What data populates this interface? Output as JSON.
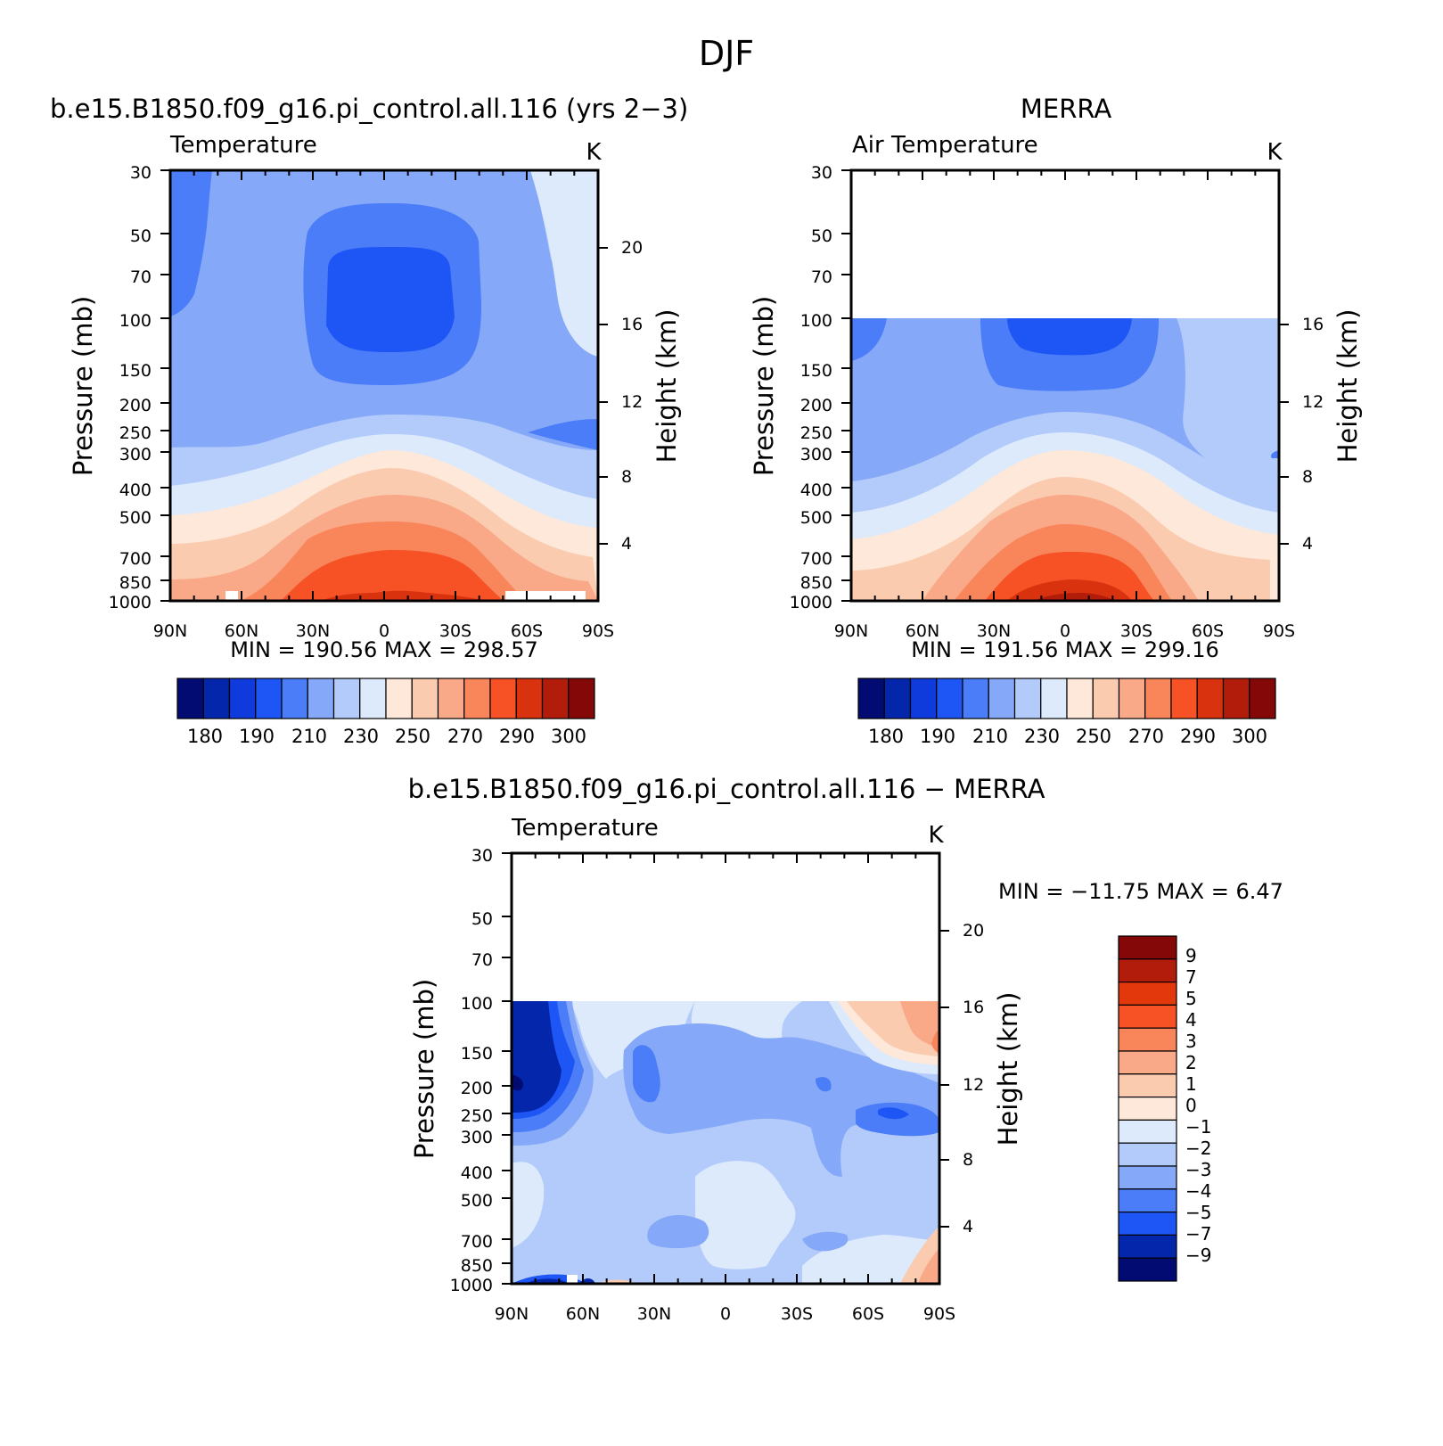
{
  "figure_title": "DJF",
  "chart_data": [
    {
      "type": "heatmap",
      "title": "b.e15.B1850.f09_g16.pi_control.all.116 (yrs 2−3)",
      "variable": "Temperature",
      "units": "K",
      "ylabel": "Pressure (mb)",
      "ylabel_right": "Height (km)",
      "x_ticks": [
        "90N",
        "60N",
        "30N",
        "0",
        "30S",
        "60S",
        "90S"
      ],
      "y_ticks": [
        "30",
        "50",
        "70",
        "100",
        "150",
        "200",
        "250",
        "300",
        "400",
        "500",
        "700",
        "850",
        "1000"
      ],
      "height_ticks": [
        "20",
        "16",
        "12",
        "8",
        "4"
      ],
      "stats": "MIN = 190.56 MAX = 298.57",
      "colorbar_labels": [
        "180",
        "190",
        "210",
        "230",
        "250",
        "270",
        "290",
        "300"
      ],
      "data_top_pressure": 30,
      "field": "equatorial cold tropopause near 100 mb (~195 K), surface maximum near the equator (~298 K)"
    },
    {
      "type": "heatmap",
      "title": "MERRA",
      "variable": "Air Temperature",
      "units": "K",
      "ylabel": "Pressure (mb)",
      "ylabel_right": "Height (km)",
      "x_ticks": [
        "90N",
        "60N",
        "30N",
        "0",
        "30S",
        "60S",
        "90S"
      ],
      "y_ticks": [
        "30",
        "50",
        "70",
        "100",
        "150",
        "200",
        "250",
        "300",
        "400",
        "500",
        "700",
        "850",
        "1000"
      ],
      "height_ticks": [
        "16",
        "12",
        "8",
        "4"
      ],
      "stats": "MIN = 191.56 MAX = 299.16",
      "colorbar_labels": [
        "180",
        "190",
        "210",
        "230",
        "250",
        "270",
        "290",
        "300"
      ],
      "data_top_pressure": 100
    },
    {
      "type": "heatmap",
      "title": "b.e15.B1850.f09_g16.pi_control.all.116 − MERRA",
      "variable": "Temperature",
      "units": "K",
      "ylabel": "Pressure (mb)",
      "ylabel_right": "Height (km)",
      "x_ticks": [
        "90N",
        "60N",
        "30N",
        "0",
        "30S",
        "60S",
        "90S"
      ],
      "y_ticks": [
        "30",
        "50",
        "70",
        "100",
        "150",
        "200",
        "250",
        "300",
        "400",
        "500",
        "700",
        "850",
        "1000"
      ],
      "height_ticks": [
        "20",
        "16",
        "12",
        "8",
        "4"
      ],
      "stats": "MIN = −11.75 MAX = 6.47",
      "colorbar_labels": [
        "9",
        "7",
        "5",
        "4",
        "3",
        "2",
        "1",
        "0",
        "−1",
        "−2",
        "−3",
        "−4",
        "−5",
        "−7",
        "−9"
      ],
      "data_top_pressure": 100
    }
  ],
  "palette_abs": [
    "#020B72",
    "#0426AA",
    "#0F3BDC",
    "#1E55F5",
    "#4A7DF7",
    "#86A8F8",
    "#B3CBFA",
    "#DCEAFC",
    "#FDE8D9",
    "#FBCBB0",
    "#F9A888",
    "#F9865A",
    "#F65225",
    "#D9320F",
    "#B21C0A",
    "#840807"
  ],
  "palette_diff_top_to_bottom": [
    "#840807",
    "#B21C0A",
    "#E2380C",
    "#F65225",
    "#F9865A",
    "#F9A888",
    "#FBCBB0",
    "#FDE8D9",
    "#DCEAFC",
    "#B3CBFA",
    "#86A8F8",
    "#4A7DF7",
    "#1E55F5",
    "#0426AA",
    "#020B72"
  ]
}
